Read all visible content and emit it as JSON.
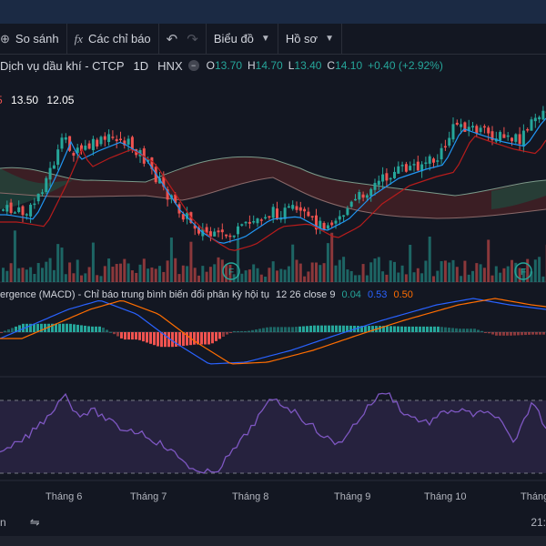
{
  "toolbar": {
    "compare_label": "So sánh",
    "indicators_label": "Các chỉ báo",
    "chart_type_label": "Biểu đồ",
    "template_label": "Hồ sơ"
  },
  "symbol": {
    "name": "Dịch vụ dầu khí - CTCP",
    "interval": "1D",
    "exchange": "HNX",
    "open_label": "O",
    "open": "13.70",
    "high_label": "H",
    "high": "14.70",
    "low_label": "L",
    "low": "13.40",
    "close_label": "C",
    "close": "14.10",
    "change": "+0.40 (+2.92%)"
  },
  "ichimoku_legend": {
    "v1": "5",
    "v2": "13.50",
    "v3": "12.05"
  },
  "macd_legend": {
    "title": "ergence (MACD) - Chỉ báo trung bình biến đổi phân kỳ hội tụ",
    "params": "12 26 close 9",
    "hist": "0.04",
    "macd": "0.53",
    "signal": "0.50"
  },
  "time_axis": [
    "Tháng 6",
    "Tháng 7",
    "Tháng 8",
    "Tháng 9",
    "Tháng 10",
    "Tháng"
  ],
  "bottom": {
    "left_text": "n",
    "right_text": "21:"
  },
  "colors": {
    "up": "#26a69a",
    "down": "#ef5350",
    "macd_line": "#2962ff",
    "signal_line": "#ff6d00",
    "rsi_line": "#7e57c2",
    "kijun": "#b71c1c",
    "tenkan": "#2196f3"
  },
  "markers": [
    {
      "label": "F"
    },
    {
      "label": "F"
    }
  ]
}
